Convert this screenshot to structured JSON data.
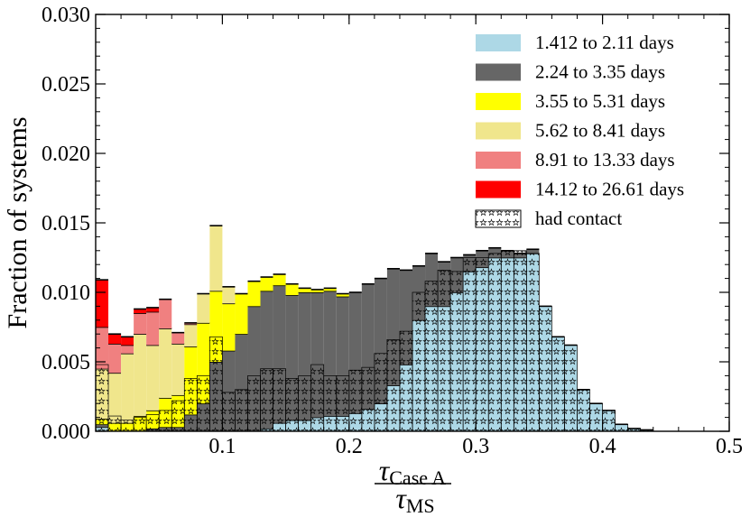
{
  "chart_data": {
    "type": "bar",
    "stacked": true,
    "title": "",
    "ylabel": "Fraction of systems",
    "xlabel": {
      "numerator_symbol": "τ",
      "numerator_sub": "Case A",
      "denominator_symbol": "τ",
      "denominator_sub": "MS"
    },
    "xlim": [
      0.0,
      0.5
    ],
    "ylim": [
      0.0,
      0.03
    ],
    "bin_width": 0.01,
    "x_ticks": [
      0.1,
      0.2,
      0.3,
      0.4,
      0.5
    ],
    "x_tick_labels": [
      "0.1",
      "0.2",
      "0.3",
      "0.4",
      "0.5"
    ],
    "y_ticks": [
      0.0,
      0.005,
      0.01,
      0.015,
      0.02,
      0.025,
      0.03
    ],
    "y_tick_labels": [
      "0.000",
      "0.005",
      "0.010",
      "0.015",
      "0.020",
      "0.025",
      "0.030"
    ],
    "legend_position": "top-right",
    "contact_label": "had contact",
    "series": [
      {
        "name": "1.412 to 2.11 days",
        "color": "#add8e6",
        "values": [
          0.0003,
          0,
          0,
          0,
          0,
          0,
          0,
          0,
          0,
          0,
          0,
          0,
          0,
          0.0002,
          0.0006,
          0.0008,
          0.0008,
          0.001,
          0.0011,
          0.0011,
          0.0013,
          0.0016,
          0.002,
          0.0033,
          0.0048,
          0.008,
          0.009,
          0.009,
          0.01,
          0.0115,
          0.0118,
          0.0125,
          0.0125,
          0.0125,
          0.0128,
          0.009,
          0.0068,
          0.0062,
          0.003,
          0.002,
          0.0015,
          0.0005,
          0.0002,
          0.0001,
          0,
          0,
          0,
          0,
          0,
          0
        ]
      },
      {
        "name": "2.24 to 3.35 days",
        "color": "#666666",
        "values": [
          0.0002,
          0,
          0,
          0,
          0.0002,
          0.0003,
          0.0003,
          0.0012,
          0.002,
          0.005,
          0.0058,
          0.007,
          0.009,
          0.0099,
          0.0099,
          0.009,
          0.0092,
          0.009,
          0.009,
          0.0086,
          0.0087,
          0.009,
          0.009,
          0.0084,
          0.0068,
          0.0039,
          0.0038,
          0.0032,
          0.0025,
          0.0012,
          0.0012,
          0.0007,
          0.0005,
          0.0003,
          0.0003,
          0,
          0,
          0,
          0,
          0,
          0,
          0,
          0,
          0,
          0,
          0,
          0,
          0,
          0,
          0
        ]
      },
      {
        "name": "3.55 to 5.31 days",
        "color": "#ffff00",
        "values": [
          0.0004,
          0.0006,
          0.0006,
          0.0011,
          0.0013,
          0.0021,
          0.0023,
          0.0049,
          0.0058,
          0.0051,
          0.0034,
          0.0029,
          0.0018,
          0.001,
          0.0008,
          0.0008,
          0.0003,
          0.0002,
          0.0002,
          0.0002,
          0,
          0,
          0,
          0,
          0,
          0,
          0,
          0,
          0,
          0,
          0,
          0,
          0,
          0,
          0,
          0,
          0,
          0,
          0,
          0,
          0,
          0,
          0,
          0,
          0,
          0,
          0,
          0,
          0,
          0
        ]
      },
      {
        "name": "5.62 to 8.41 days",
        "color": "#f0e68c",
        "values": [
          0.0036,
          0.0036,
          0.005,
          0.0059,
          0.0047,
          0.005,
          0.0037,
          0.0016,
          0.0021,
          0.0047,
          0.0012,
          0,
          0,
          0,
          0,
          0,
          0,
          0,
          0,
          0,
          0,
          0,
          0,
          0,
          0,
          0,
          0,
          0,
          0,
          0,
          0,
          0,
          0,
          0,
          0,
          0,
          0,
          0,
          0,
          0,
          0,
          0,
          0,
          0,
          0,
          0,
          0,
          0,
          0,
          0
        ]
      },
      {
        "name": "8.91 to 13.33 days",
        "color": "#f08080",
        "values": [
          0.003,
          0.0021,
          0.0006,
          0.0015,
          0.0024,
          0.0021,
          0.0008,
          0.0001,
          0,
          0,
          0,
          0,
          0,
          0,
          0,
          0,
          0,
          0,
          0,
          0,
          0,
          0,
          0,
          0,
          0,
          0,
          0,
          0,
          0,
          0,
          0,
          0,
          0,
          0,
          0,
          0,
          0,
          0,
          0,
          0,
          0,
          0,
          0,
          0,
          0,
          0,
          0,
          0,
          0,
          0
        ]
      },
      {
        "name": "14.12 to 26.61 days",
        "color": "#ff0000",
        "values": [
          0.0034,
          0.0007,
          0.0006,
          0.0003,
          0.0003,
          0,
          0,
          0,
          0,
          0,
          0,
          0,
          0,
          0,
          0,
          0,
          0,
          0,
          0,
          0,
          0,
          0,
          0,
          0,
          0,
          0,
          0,
          0,
          0,
          0,
          0,
          0,
          0,
          0,
          0,
          0,
          0,
          0,
          0,
          0,
          0,
          0,
          0,
          0,
          0,
          0,
          0,
          0,
          0,
          0
        ]
      }
    ],
    "had_contact": [
      0.0048,
      0.0011,
      0.0008,
      0.001,
      0.0012,
      0.0015,
      0.0022,
      0.0038,
      0.004,
      0.0068,
      0.0028,
      0.003,
      0.004,
      0.0045,
      0.0045,
      0.0038,
      0.004,
      0.0048,
      0.004,
      0.004,
      0.0044,
      0.0046,
      0.0056,
      0.0066,
      0.0072,
      0.01,
      0.0108,
      0.0116,
      0.0115,
      0.0125,
      0.0125,
      0.0128,
      0.013,
      0.013,
      0.0128,
      0.009,
      0.0068,
      0.0062,
      0.003,
      0.002,
      0.0015,
      0.0005,
      0.0002,
      0.0001,
      0,
      0,
      0,
      0,
      0,
      0
    ]
  }
}
